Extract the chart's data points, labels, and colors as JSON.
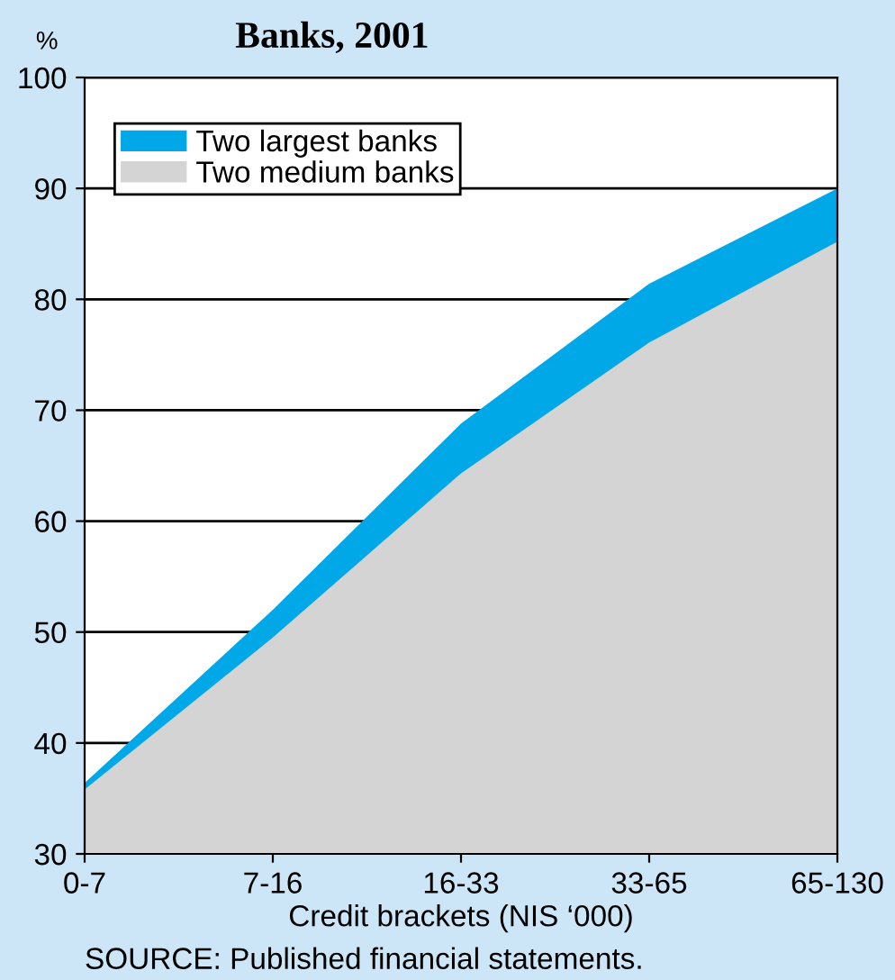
{
  "chart_data": {
    "type": "area",
    "title": "Banks, 2001",
    "ylabel": "%",
    "xlabel": "Credit brackets (NIS ‘000)",
    "categories": [
      "0-7",
      "7-16",
      "16-33",
      "33-65",
      "65-130"
    ],
    "series": [
      {
        "name": "Two largest banks",
        "color": "#00a8e8",
        "values": [
          36.4,
          52.0,
          68.8,
          81.4,
          90.0
        ]
      },
      {
        "name": "Two medium banks",
        "color": "#d4d4d4",
        "values": [
          35.8,
          49.5,
          64.3,
          76.1,
          85.2
        ]
      }
    ],
    "ylim": [
      30,
      100
    ],
    "yticks": [
      30,
      40,
      50,
      60,
      70,
      80,
      90,
      100
    ],
    "grid": "y",
    "legend": "top left",
    "annotations": [
      "SOURCE: Published financial statements."
    ]
  }
}
